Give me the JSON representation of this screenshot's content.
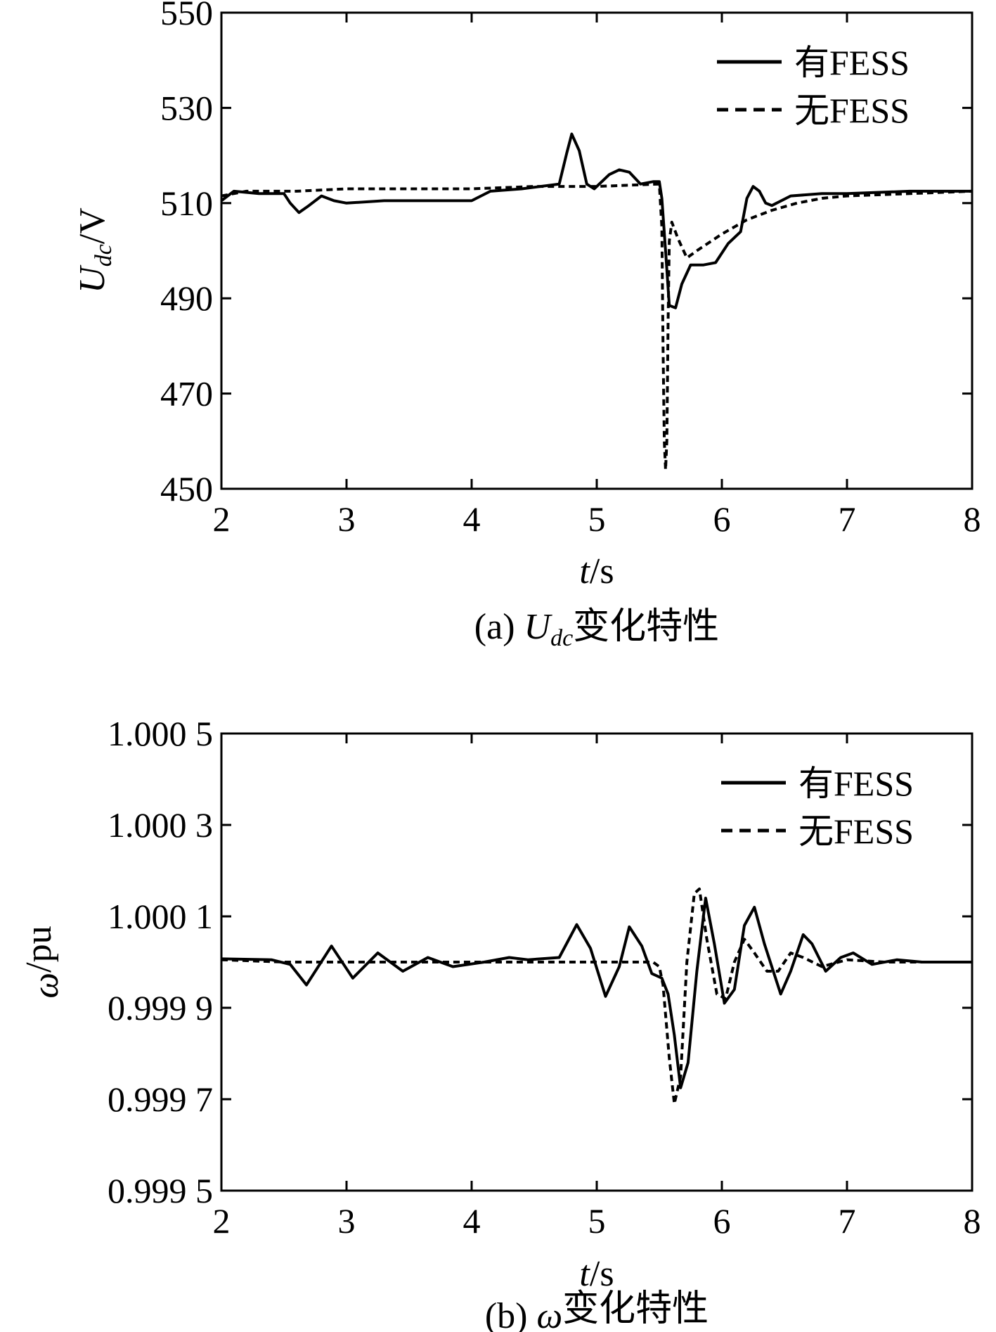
{
  "chart_data": [
    {
      "type": "line",
      "caption_prefix": "(a) ",
      "caption_var": "U",
      "caption_sub": "dc",
      "caption_suffix": "变化特性",
      "xlabel_var": "t",
      "xlabel_unit": "/s",
      "ylabel_var": "U",
      "ylabel_sub": "dc",
      "ylabel_unit": "/V",
      "xlim": [
        2,
        8
      ],
      "ylim": [
        450,
        550
      ],
      "xticks": [
        "2",
        "3",
        "4",
        "5",
        "6",
        "7",
        "8"
      ],
      "yticks": [
        "450",
        "470",
        "490",
        "510",
        "530",
        "550"
      ],
      "legend_position": "top-right",
      "series": [
        {
          "name": "有FESS",
          "style": "solid",
          "points": [
            [
              2.0,
              510.5
            ],
            [
              2.1,
              512.5
            ],
            [
              2.3,
              512.0
            ],
            [
              2.5,
              512.0
            ],
            [
              2.55,
              510.0
            ],
            [
              2.62,
              508.0
            ],
            [
              2.7,
              509.5
            ],
            [
              2.8,
              511.5
            ],
            [
              2.9,
              510.5
            ],
            [
              3.0,
              510.0
            ],
            [
              3.3,
              510.5
            ],
            [
              3.6,
              510.5
            ],
            [
              4.0,
              510.5
            ],
            [
              4.15,
              512.5
            ],
            [
              4.4,
              513.0
            ],
            [
              4.7,
              514.0
            ],
            [
              4.76,
              520.5
            ],
            [
              4.8,
              524.5
            ],
            [
              4.86,
              521.0
            ],
            [
              4.92,
              514.0
            ],
            [
              4.98,
              513.0
            ],
            [
              5.1,
              516.0
            ],
            [
              5.18,
              517.0
            ],
            [
              5.26,
              516.5
            ],
            [
              5.35,
              514.0
            ],
            [
              5.45,
              514.5
            ],
            [
              5.5,
              514.5
            ],
            [
              5.52,
              511.0
            ],
            [
              5.55,
              500.0
            ],
            [
              5.58,
              488.5
            ],
            [
              5.63,
              488.0
            ],
            [
              5.68,
              493.0
            ],
            [
              5.75,
              497.0
            ],
            [
              5.85,
              497.0
            ],
            [
              5.95,
              497.5
            ],
            [
              6.05,
              501.5
            ],
            [
              6.15,
              504.0
            ],
            [
              6.2,
              511.0
            ],
            [
              6.25,
              513.5
            ],
            [
              6.3,
              512.5
            ],
            [
              6.35,
              510.0
            ],
            [
              6.4,
              509.5
            ],
            [
              6.55,
              511.5
            ],
            [
              6.8,
              512.0
            ],
            [
              7.0,
              512.0
            ],
            [
              7.5,
              512.5
            ],
            [
              8.0,
              512.5
            ]
          ]
        },
        {
          "name": "无FESS",
          "style": "dashed",
          "points": [
            [
              2.0,
              511.5
            ],
            [
              2.2,
              512.5
            ],
            [
              2.6,
              512.5
            ],
            [
              3.0,
              513.0
            ],
            [
              3.5,
              513.0
            ],
            [
              4.0,
              513.0
            ],
            [
              4.5,
              513.5
            ],
            [
              5.0,
              513.5
            ],
            [
              5.5,
              514.0
            ],
            [
              5.52,
              505.0
            ],
            [
              5.53,
              480.0
            ],
            [
              5.54,
              460.0
            ],
            [
              5.55,
              454.0
            ],
            [
              5.56,
              460.0
            ],
            [
              5.57,
              485.0
            ],
            [
              5.58,
              502.0
            ],
            [
              5.6,
              506.0
            ],
            [
              5.65,
              502.5
            ],
            [
              5.72,
              498.5
            ],
            [
              5.8,
              500.0
            ],
            [
              6.0,
              503.5
            ],
            [
              6.2,
              506.5
            ],
            [
              6.4,
              508.5
            ],
            [
              6.6,
              510.0
            ],
            [
              6.8,
              511.0
            ],
            [
              7.0,
              511.5
            ],
            [
              7.5,
              512.0
            ],
            [
              8.0,
              512.5
            ]
          ]
        }
      ]
    },
    {
      "type": "line",
      "caption_prefix": "(b) ",
      "caption_var": "ω",
      "caption_sub": "",
      "caption_suffix": "变化特性",
      "xlabel_var": "t",
      "xlabel_unit": "/s",
      "ylabel_var": "ω",
      "ylabel_sub": "",
      "ylabel_unit": "/pu",
      "xlim": [
        2,
        8
      ],
      "ylim": [
        0.9995,
        1.0005
      ],
      "xticks": [
        "2",
        "3",
        "4",
        "5",
        "6",
        "7",
        "8"
      ],
      "yticks": [
        "0.999 5",
        "0.999 7",
        "0.999 9",
        "1.000 1",
        "1.000 3",
        "1.000 5"
      ],
      "legend_position": "top-right",
      "series": [
        {
          "name": "有FESS",
          "style": "solid",
          "points": [
            [
              2.0,
              1.000007
            ],
            [
              2.4,
              1.000005
            ],
            [
              2.55,
              0.999995
            ],
            [
              2.68,
              0.99995
            ],
            [
              2.88,
              1.000035
            ],
            [
              3.05,
              0.999965
            ],
            [
              3.25,
              1.00002
            ],
            [
              3.45,
              0.99998
            ],
            [
              3.65,
              1.00001
            ],
            [
              3.85,
              0.99999
            ],
            [
              4.1,
              1.0
            ],
            [
              4.3,
              1.00001
            ],
            [
              4.45,
              1.000005
            ],
            [
              4.7,
              1.00001
            ],
            [
              4.84,
              1.000082
            ],
            [
              4.95,
              1.00003
            ],
            [
              5.07,
              0.999925
            ],
            [
              5.18,
              0.99999
            ],
            [
              5.26,
              1.000077
            ],
            [
              5.36,
              1.000035
            ],
            [
              5.44,
              0.999975
            ],
            [
              5.52,
              0.999965
            ],
            [
              5.57,
              0.99993
            ],
            [
              5.62,
              0.99984
            ],
            [
              5.67,
              0.999725
            ],
            [
              5.73,
              0.99978
            ],
            [
              5.8,
              0.99998
            ],
            [
              5.87,
              1.00014
            ],
            [
              5.94,
              1.00004
            ],
            [
              6.02,
              0.99991
            ],
            [
              6.1,
              0.99994
            ],
            [
              6.18,
              1.00008
            ],
            [
              6.26,
              1.00012
            ],
            [
              6.34,
              1.00004
            ],
            [
              6.47,
              0.99993
            ],
            [
              6.55,
              0.99998
            ],
            [
              6.65,
              1.00006
            ],
            [
              6.72,
              1.00004
            ],
            [
              6.83,
              0.99998
            ],
            [
              6.95,
              1.00001
            ],
            [
              7.05,
              1.00002
            ],
            [
              7.2,
              0.999995
            ],
            [
              7.4,
              1.000005
            ],
            [
              7.6,
              1.0
            ],
            [
              8.0,
              1.0
            ]
          ]
        },
        {
          "name": "无FESS",
          "style": "dashed",
          "points": [
            [
              2.0,
              1.000005
            ],
            [
              2.5,
              1.0
            ],
            [
              3.0,
              1.0
            ],
            [
              3.5,
              1.0
            ],
            [
              4.0,
              1.0
            ],
            [
              4.5,
              1.0
            ],
            [
              5.0,
              1.0
            ],
            [
              5.45,
              1.0
            ],
            [
              5.5,
              0.99999
            ],
            [
              5.53,
              0.99995
            ],
            [
              5.58,
              0.99979
            ],
            [
              5.62,
              0.99969
            ],
            [
              5.67,
              0.99975
            ],
            [
              5.72,
              1.0
            ],
            [
              5.78,
              1.00015
            ],
            [
              5.82,
              1.00016
            ],
            [
              5.88,
              1.00005
            ],
            [
              5.96,
              0.99993
            ],
            [
              6.03,
              0.99992
            ],
            [
              6.1,
              1.0
            ],
            [
              6.18,
              1.00005
            ],
            [
              6.26,
              1.00002
            ],
            [
              6.36,
              0.99998
            ],
            [
              6.45,
              0.99998
            ],
            [
              6.55,
              1.00002
            ],
            [
              6.65,
              1.00001
            ],
            [
              6.8,
              0.99999
            ],
            [
              7.0,
              1.000005
            ],
            [
              7.3,
              1.0
            ],
            [
              8.0,
              1.0
            ]
          ]
        }
      ]
    }
  ]
}
